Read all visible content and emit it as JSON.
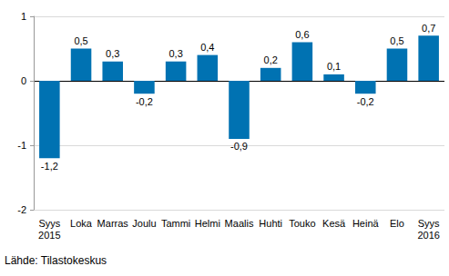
{
  "chart_data": {
    "type": "bar",
    "categories": [
      "Syys\n2015",
      "Loka",
      "Marras",
      "Joulu",
      "Tammi",
      "Helmi",
      "Maalis",
      "Huhti",
      "Touko",
      "Kesä",
      "Heinä",
      "Elo",
      "Syys\n2016"
    ],
    "values": [
      -1.2,
      0.5,
      0.3,
      -0.2,
      0.3,
      0.4,
      -0.9,
      0.2,
      0.6,
      0.1,
      -0.2,
      0.5,
      0.7
    ],
    "value_labels": [
      "-1,2",
      "0,5",
      "0,3",
      "-0,2",
      "0,3",
      "0,4",
      "-0,9",
      "0,2",
      "0,6",
      "0,1",
      "-0,2",
      "0,5",
      "0,7"
    ],
    "color": "#0072b2",
    "ylim": [
      -2,
      1
    ],
    "yticks": [
      -2,
      -1,
      0,
      1
    ],
    "grid": true,
    "data_labels": true,
    "source": "Lähde: Tilastokeskus"
  }
}
